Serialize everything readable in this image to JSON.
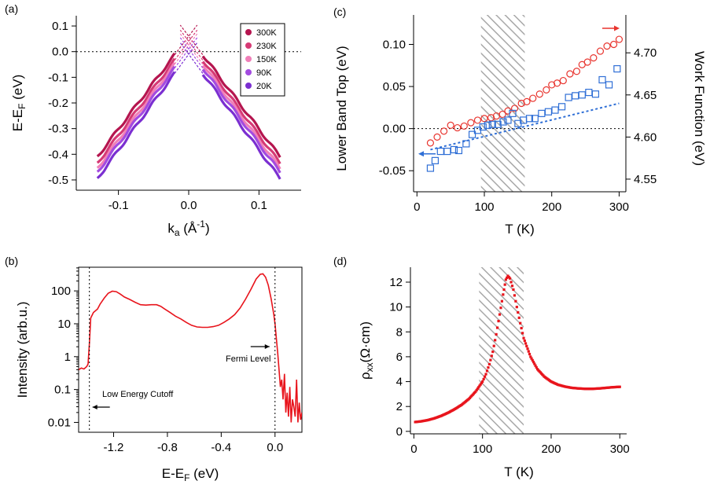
{
  "chart_data": [
    {
      "id": "a",
      "panel_label": "(a)",
      "type": "line",
      "xlabel_base": "k",
      "xlabel_sub": "a",
      "xlabel_unit": " (Å",
      "xlabel_sup": "-1",
      "xlabel_end": ")",
      "ylabel_base": "E-E",
      "ylabel_sub": "F",
      "ylabel_unit": " (eV)",
      "xlim": [
        -0.16,
        0.16
      ],
      "ylim": [
        -0.54,
        0.14
      ],
      "xticks": [
        -0.1,
        0.0,
        0.1
      ],
      "xticklabels": [
        "-0.1",
        "0.0",
        "0.1"
      ],
      "yticks": [
        0.1,
        0.0,
        -0.1,
        -0.2,
        -0.3,
        -0.4,
        -0.5
      ],
      "yticklabels": [
        "0.1",
        "0.0",
        "-0.1",
        "-0.2",
        "-0.3",
        "-0.4",
        "-0.5"
      ],
      "reference_line_y": 0.0,
      "legend_position": "top-right",
      "series": [
        {
          "name": "300K",
          "color": "#b5154f",
          "apex": 0.06,
          "edge": -0.41,
          "apex_k": 0.0
        },
        {
          "name": "230K",
          "color": "#d63a75",
          "apex": 0.04,
          "edge": -0.435,
          "apex_k": 0.0
        },
        {
          "name": "150K",
          "color": "#f07fb8",
          "apex": 0.025,
          "edge": -0.455,
          "apex_k": 0.0
        },
        {
          "name": "90K",
          "color": "#a34be0",
          "apex": 0.01,
          "edge": -0.47,
          "apex_k": 0.0
        },
        {
          "name": "20K",
          "color": "#7b2fd1",
          "apex": -0.01,
          "edge": -0.495,
          "apex_k": 0.0
        }
      ],
      "k_range": [
        -0.13,
        0.13
      ],
      "k_fit_inner": 0.02
    },
    {
      "id": "b",
      "panel_label": "(b)",
      "type": "line",
      "xlabel_base": "E-E",
      "xlabel_sub": "F",
      "xlabel_unit": " (eV)",
      "ylabel": "Intensity (arb.u.)",
      "xlim": [
        -1.46,
        0.2
      ],
      "ylim_log10": [
        -2.3,
        2.72
      ],
      "xticks": [
        -1.2,
        -0.8,
        -0.4,
        0.0
      ],
      "xticklabels": [
        "-1.2",
        "-0.8",
        "-0.4",
        "0.0"
      ],
      "yticks": [
        100,
        10,
        1,
        0.1,
        0.01
      ],
      "yticklabels": [
        "100",
        "10",
        "1",
        "0.1",
        "0.01"
      ],
      "color": "#e8141c",
      "vlines": [
        -1.38,
        0.0
      ],
      "annotations": [
        {
          "text": "Low Energy Cutoff",
          "arrow": "left"
        },
        {
          "text": "Fermi Level",
          "arrow": "right"
        }
      ],
      "spectrum": [
        [
          -1.46,
          0.4
        ],
        [
          -1.44,
          0.45
        ],
        [
          -1.42,
          0.42
        ],
        [
          -1.4,
          0.5
        ],
        [
          -1.39,
          0.6
        ],
        [
          -1.38,
          2.5
        ],
        [
          -1.37,
          15
        ],
        [
          -1.35,
          22
        ],
        [
          -1.32,
          28
        ],
        [
          -1.3,
          40
        ],
        [
          -1.27,
          60
        ],
        [
          -1.24,
          85
        ],
        [
          -1.21,
          98
        ],
        [
          -1.18,
          95
        ],
        [
          -1.15,
          80
        ],
        [
          -1.12,
          65
        ],
        [
          -1.08,
          55
        ],
        [
          -1.04,
          45
        ],
        [
          -1.0,
          38
        ],
        [
          -0.96,
          37
        ],
        [
          -0.92,
          38
        ],
        [
          -0.88,
          38
        ],
        [
          -0.85,
          34
        ],
        [
          -0.82,
          28
        ],
        [
          -0.78,
          22
        ],
        [
          -0.74,
          17
        ],
        [
          -0.7,
          14
        ],
        [
          -0.66,
          11
        ],
        [
          -0.62,
          9
        ],
        [
          -0.58,
          8
        ],
        [
          -0.54,
          7.8
        ],
        [
          -0.5,
          7.8
        ],
        [
          -0.46,
          8.2
        ],
        [
          -0.42,
          9
        ],
        [
          -0.38,
          11
        ],
        [
          -0.34,
          14
        ],
        [
          -0.3,
          19
        ],
        [
          -0.26,
          30
        ],
        [
          -0.22,
          55
        ],
        [
          -0.18,
          110
        ],
        [
          -0.14,
          230
        ],
        [
          -0.11,
          320
        ],
        [
          -0.09,
          330
        ],
        [
          -0.07,
          260
        ],
        [
          -0.05,
          150
        ],
        [
          -0.03,
          60
        ],
        [
          -0.01,
          20
        ],
        [
          0.0,
          10
        ],
        [
          0.01,
          3.5
        ],
        [
          0.02,
          1.3
        ],
        [
          0.03,
          0.4
        ],
        [
          0.04,
          0.12
        ],
        [
          0.05,
          0.2
        ],
        [
          0.06,
          0.05
        ],
        [
          0.07,
          0.3
        ],
        [
          0.08,
          0.02
        ],
        [
          0.09,
          0.08
        ],
        [
          0.1,
          0.015
        ],
        [
          0.11,
          0.12
        ],
        [
          0.12,
          0.01
        ],
        [
          0.13,
          0.05
        ],
        [
          0.14,
          0.03
        ],
        [
          0.15,
          0.015
        ],
        [
          0.16,
          0.2
        ],
        [
          0.17,
          0.01
        ],
        [
          0.18,
          0.04
        ],
        [
          0.19,
          0.012
        ],
        [
          0.2,
          0.02
        ]
      ]
    },
    {
      "id": "c",
      "panel_label": "(c)",
      "type": "scatter",
      "xlabel": "T (K)",
      "ylabel": "Lower Band Top (eV)",
      "ylabel_right": "Work Function (eV)",
      "xlim": [
        -5,
        310
      ],
      "ylim": [
        -0.075,
        0.135
      ],
      "ylim_right": [
        4.535,
        4.745
      ],
      "xticks": [
        0,
        100,
        200,
        300
      ],
      "yticks": [
        0.1,
        0.05,
        0.0,
        -0.05
      ],
      "yticklabels": [
        "0.10",
        "0.05",
        "0.00",
        "-0.05"
      ],
      "yticks_right": [
        4.7,
        4.65,
        4.6,
        4.55
      ],
      "yticklabels_right": [
        "4.70",
        "4.65",
        "4.60",
        "4.55"
      ],
      "reference_line_y": 0.0,
      "hatched_range_x": [
        95,
        160
      ],
      "blue_color": "#2f6fd6",
      "red_color": "#e8342e",
      "blue_fit": [
        [
          20,
          -0.025
        ],
        [
          300,
          0.03
        ]
      ],
      "lower_band_top": [
        [
          20,
          -0.047
        ],
        [
          27,
          -0.038
        ],
        [
          35,
          -0.027
        ],
        [
          45,
          -0.027
        ],
        [
          55,
          -0.025
        ],
        [
          62,
          -0.026
        ],
        [
          73,
          -0.018
        ],
        [
          82,
          -0.007
        ],
        [
          90,
          -0.002
        ],
        [
          98,
          0.002
        ],
        [
          105,
          0.004
        ],
        [
          112,
          0.005
        ],
        [
          120,
          0.005
        ],
        [
          128,
          0.008
        ],
        [
          135,
          0.01
        ],
        [
          142,
          0.018
        ],
        [
          150,
          0.006
        ],
        [
          158,
          0.01
        ],
        [
          167,
          0.012
        ],
        [
          175,
          0.012
        ],
        [
          185,
          0.018
        ],
        [
          195,
          0.02
        ],
        [
          205,
          0.022
        ],
        [
          215,
          0.026
        ],
        [
          225,
          0.037
        ],
        [
          235,
          0.039
        ],
        [
          245,
          0.04
        ],
        [
          255,
          0.043
        ],
        [
          265,
          0.041
        ],
        [
          275,
          0.058
        ],
        [
          285,
          0.052
        ],
        [
          297,
          0.071
        ]
      ],
      "work_function": [
        [
          20,
          4.593
        ],
        [
          30,
          4.6
        ],
        [
          40,
          4.607
        ],
        [
          50,
          4.614
        ],
        [
          60,
          4.611
        ],
        [
          70,
          4.613
        ],
        [
          80,
          4.617
        ],
        [
          90,
          4.62
        ],
        [
          100,
          4.622
        ],
        [
          110,
          4.623
        ],
        [
          118,
          4.625
        ],
        [
          127,
          4.627
        ],
        [
          135,
          4.631
        ],
        [
          145,
          4.634
        ],
        [
          155,
          4.64
        ],
        [
          163,
          4.642
        ],
        [
          172,
          4.646
        ],
        [
          182,
          4.651
        ],
        [
          192,
          4.656
        ],
        [
          200,
          4.662
        ],
        [
          208,
          4.664
        ],
        [
          217,
          4.667
        ],
        [
          227,
          4.675
        ],
        [
          237,
          4.678
        ],
        [
          245,
          4.686
        ],
        [
          253,
          4.689
        ],
        [
          262,
          4.694
        ],
        [
          272,
          4.702
        ],
        [
          282,
          4.708
        ],
        [
          292,
          4.71
        ],
        [
          300,
          4.716
        ]
      ]
    },
    {
      "id": "d",
      "panel_label": "(d)",
      "type": "line",
      "xlabel": "T (K)",
      "ylabel_base": "ρ",
      "ylabel_sub": "xx",
      "ylabel_unit": "(Ω·cm)",
      "xlim": [
        -5,
        310
      ],
      "ylim": [
        -0.2,
        13.2
      ],
      "xticks": [
        0,
        100,
        200,
        300
      ],
      "yticks": [
        0,
        2,
        4,
        6,
        8,
        10,
        12
      ],
      "hatched_range_x": [
        95,
        160
      ],
      "color": "#e8141c",
      "resistivity": [
        [
          2,
          0.75
        ],
        [
          10,
          0.8
        ],
        [
          20,
          0.9
        ],
        [
          30,
          1.05
        ],
        [
          40,
          1.25
        ],
        [
          50,
          1.5
        ],
        [
          60,
          1.8
        ],
        [
          70,
          2.15
        ],
        [
          80,
          2.6
        ],
        [
          90,
          3.2
        ],
        [
          100,
          4.0
        ],
        [
          105,
          4.6
        ],
        [
          110,
          5.4
        ],
        [
          115,
          6.4
        ],
        [
          120,
          7.8
        ],
        [
          125,
          9.4
        ],
        [
          130,
          11.0
        ],
        [
          134,
          12.2
        ],
        [
          137,
          12.5
        ],
        [
          140,
          12.3
        ],
        [
          145,
          11.4
        ],
        [
          150,
          10.0
        ],
        [
          155,
          8.7
        ],
        [
          160,
          7.5
        ],
        [
          170,
          6.0
        ],
        [
          180,
          5.0
        ],
        [
          190,
          4.4
        ],
        [
          200,
          4.0
        ],
        [
          210,
          3.75
        ],
        [
          220,
          3.6
        ],
        [
          230,
          3.5
        ],
        [
          240,
          3.45
        ],
        [
          250,
          3.42
        ],
        [
          260,
          3.42
        ],
        [
          270,
          3.45
        ],
        [
          280,
          3.5
        ],
        [
          290,
          3.55
        ],
        [
          300,
          3.58
        ]
      ]
    }
  ]
}
